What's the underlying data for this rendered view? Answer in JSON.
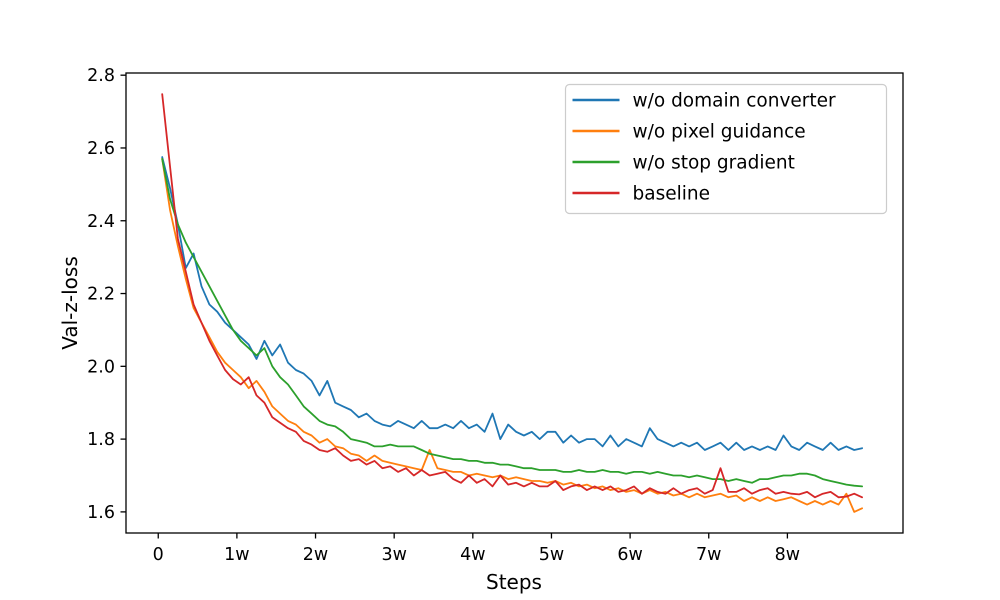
{
  "figure": {
    "background": "#ffffff",
    "text_color": "#000000",
    "spine_color": "#000000",
    "legend_border_color": "#cccccc"
  },
  "chart_data": {
    "type": "line",
    "title": "",
    "xlabel": "Steps",
    "ylabel": "Val-z-loss",
    "xlim": [
      -0.41,
      9.47
    ],
    "ylim": [
      1.542,
      2.806
    ],
    "grid": false,
    "legend_position": "upper right",
    "x_ticks": [
      {
        "v": 0,
        "label": "0"
      },
      {
        "v": 1,
        "label": "1w"
      },
      {
        "v": 2,
        "label": "2w"
      },
      {
        "v": 3,
        "label": "3w"
      },
      {
        "v": 4,
        "label": "4w"
      },
      {
        "v": 5,
        "label": "5w"
      },
      {
        "v": 6,
        "label": "6w"
      },
      {
        "v": 7,
        "label": "7w"
      },
      {
        "v": 8,
        "label": "8w"
      }
    ],
    "y_ticks": [
      {
        "v": 1.6,
        "label": "1.6"
      },
      {
        "v": 1.8,
        "label": "1.8"
      },
      {
        "v": 2.0,
        "label": "2.0"
      },
      {
        "v": 2.2,
        "label": "2.2"
      },
      {
        "v": 2.4,
        "label": "2.4"
      },
      {
        "v": 2.6,
        "label": "2.6"
      },
      {
        "v": 2.8,
        "label": "2.8"
      }
    ],
    "x": [
      0.05,
      0.15,
      0.25,
      0.35,
      0.45,
      0.55,
      0.65,
      0.75,
      0.85,
      0.95,
      1.05,
      1.15,
      1.25,
      1.35,
      1.45,
      1.55,
      1.65,
      1.75,
      1.85,
      1.95,
      2.05,
      2.15,
      2.25,
      2.35,
      2.45,
      2.55,
      2.65,
      2.75,
      2.85,
      2.95,
      3.05,
      3.15,
      3.25,
      3.35,
      3.45,
      3.55,
      3.65,
      3.75,
      3.85,
      3.95,
      4.05,
      4.15,
      4.25,
      4.35,
      4.45,
      4.55,
      4.65,
      4.75,
      4.85,
      4.95,
      5.05,
      5.15,
      5.25,
      5.35,
      5.45,
      5.55,
      5.65,
      5.75,
      5.85,
      5.95,
      6.05,
      6.15,
      6.25,
      6.35,
      6.45,
      6.55,
      6.65,
      6.75,
      6.85,
      6.95,
      7.05,
      7.15,
      7.25,
      7.35,
      7.45,
      7.55,
      7.65,
      7.75,
      7.85,
      7.95,
      8.05,
      8.15,
      8.25,
      8.35,
      8.45,
      8.55,
      8.65,
      8.75,
      8.85,
      8.95
    ],
    "series": [
      {
        "name": "w/o domain converter",
        "color": "#1f77b4",
        "values": [
          2.575,
          2.49,
          2.39,
          2.27,
          2.31,
          2.22,
          2.17,
          2.15,
          2.12,
          2.1,
          2.08,
          2.06,
          2.02,
          2.07,
          2.03,
          2.06,
          2.01,
          1.99,
          1.98,
          1.96,
          1.92,
          1.96,
          1.9,
          1.89,
          1.88,
          1.86,
          1.87,
          1.85,
          1.84,
          1.835,
          1.85,
          1.84,
          1.83,
          1.85,
          1.83,
          1.83,
          1.84,
          1.83,
          1.85,
          1.83,
          1.84,
          1.82,
          1.87,
          1.8,
          1.84,
          1.82,
          1.81,
          1.82,
          1.8,
          1.82,
          1.82,
          1.79,
          1.81,
          1.79,
          1.8,
          1.8,
          1.78,
          1.81,
          1.78,
          1.8,
          1.79,
          1.78,
          1.83,
          1.8,
          1.79,
          1.78,
          1.79,
          1.78,
          1.79,
          1.77,
          1.78,
          1.79,
          1.77,
          1.79,
          1.77,
          1.78,
          1.77,
          1.78,
          1.77,
          1.81,
          1.78,
          1.77,
          1.79,
          1.78,
          1.77,
          1.79,
          1.77,
          1.78,
          1.77,
          1.775
        ]
      },
      {
        "name": "w/o pixel guidance",
        "color": "#ff7f0e",
        "values": [
          2.57,
          2.43,
          2.33,
          2.24,
          2.16,
          2.12,
          2.08,
          2.04,
          2.01,
          1.99,
          1.97,
          1.94,
          1.96,
          1.93,
          1.89,
          1.87,
          1.85,
          1.84,
          1.82,
          1.81,
          1.79,
          1.8,
          1.78,
          1.775,
          1.76,
          1.755,
          1.74,
          1.755,
          1.74,
          1.735,
          1.73,
          1.725,
          1.72,
          1.715,
          1.77,
          1.72,
          1.715,
          1.71,
          1.71,
          1.7,
          1.705,
          1.7,
          1.695,
          1.7,
          1.69,
          1.695,
          1.69,
          1.685,
          1.685,
          1.68,
          1.685,
          1.675,
          1.68,
          1.67,
          1.675,
          1.665,
          1.67,
          1.66,
          1.665,
          1.655,
          1.66,
          1.65,
          1.66,
          1.65,
          1.655,
          1.645,
          1.65,
          1.64,
          1.65,
          1.64,
          1.645,
          1.65,
          1.64,
          1.645,
          1.63,
          1.64,
          1.63,
          1.64,
          1.63,
          1.635,
          1.64,
          1.63,
          1.62,
          1.63,
          1.62,
          1.63,
          1.62,
          1.65,
          1.6,
          1.61
        ]
      },
      {
        "name": "w/o stop gradient",
        "color": "#2ca02c",
        "values": [
          2.57,
          2.46,
          2.39,
          2.34,
          2.3,
          2.26,
          2.22,
          2.18,
          2.14,
          2.1,
          2.07,
          2.05,
          2.03,
          2.05,
          2.0,
          1.97,
          1.95,
          1.92,
          1.89,
          1.87,
          1.85,
          1.84,
          1.835,
          1.82,
          1.8,
          1.795,
          1.79,
          1.78,
          1.78,
          1.785,
          1.78,
          1.78,
          1.78,
          1.77,
          1.76,
          1.755,
          1.75,
          1.745,
          1.745,
          1.74,
          1.74,
          1.735,
          1.735,
          1.73,
          1.73,
          1.725,
          1.72,
          1.72,
          1.715,
          1.715,
          1.715,
          1.71,
          1.71,
          1.715,
          1.71,
          1.71,
          1.715,
          1.71,
          1.71,
          1.705,
          1.71,
          1.71,
          1.705,
          1.71,
          1.705,
          1.7,
          1.7,
          1.695,
          1.7,
          1.695,
          1.69,
          1.69,
          1.685,
          1.69,
          1.685,
          1.68,
          1.69,
          1.69,
          1.695,
          1.7,
          1.7,
          1.705,
          1.705,
          1.7,
          1.69,
          1.685,
          1.68,
          1.675,
          1.672,
          1.67
        ]
      },
      {
        "name": "baseline",
        "color": "#d62728",
        "values": [
          2.748,
          2.55,
          2.35,
          2.26,
          2.17,
          2.12,
          2.07,
          2.03,
          1.99,
          1.965,
          1.95,
          1.97,
          1.92,
          1.9,
          1.86,
          1.845,
          1.83,
          1.82,
          1.795,
          1.785,
          1.77,
          1.765,
          1.775,
          1.755,
          1.74,
          1.745,
          1.73,
          1.74,
          1.72,
          1.725,
          1.71,
          1.72,
          1.7,
          1.715,
          1.7,
          1.705,
          1.71,
          1.69,
          1.68,
          1.7,
          1.68,
          1.69,
          1.67,
          1.7,
          1.675,
          1.68,
          1.67,
          1.68,
          1.67,
          1.67,
          1.685,
          1.66,
          1.67,
          1.675,
          1.66,
          1.67,
          1.66,
          1.67,
          1.655,
          1.66,
          1.67,
          1.65,
          1.665,
          1.655,
          1.65,
          1.665,
          1.65,
          1.66,
          1.665,
          1.65,
          1.66,
          1.72,
          1.655,
          1.655,
          1.665,
          1.65,
          1.66,
          1.665,
          1.65,
          1.655,
          1.65,
          1.648,
          1.655,
          1.64,
          1.65,
          1.655,
          1.64,
          1.642,
          1.65,
          1.64
        ]
      }
    ]
  }
}
